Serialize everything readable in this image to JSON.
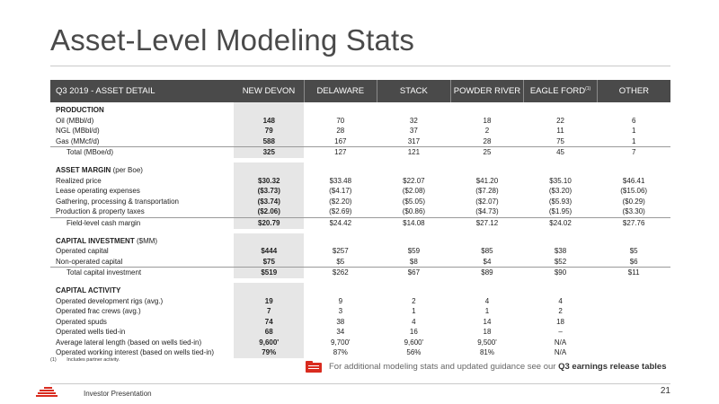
{
  "title": "Asset-Level Modeling Stats",
  "table": {
    "headers": [
      "Q3 2019 - ASSET DETAIL",
      "NEW DEVON",
      "DELAWARE",
      "STACK",
      "POWDER RIVER",
      "EAGLE FORD",
      "OTHER"
    ],
    "eagle_ford_sup": "(1)",
    "production": {
      "heading": "PRODUCTION",
      "rows": [
        {
          "label": "Oil (MBbl/d)",
          "values": [
            "148",
            "70",
            "32",
            "18",
            "22",
            "6"
          ]
        },
        {
          "label": "NGL (MBbl/d)",
          "values": [
            "79",
            "28",
            "37",
            "2",
            "11",
            "1"
          ]
        },
        {
          "label": "Gas (MMcf/d)",
          "values": [
            "588",
            "167",
            "317",
            "28",
            "75",
            "1"
          ]
        }
      ],
      "total": {
        "label": "Total (MBoe/d)",
        "values": [
          "325",
          "127",
          "121",
          "25",
          "45",
          "7"
        ]
      }
    },
    "asset_margin": {
      "heading": "ASSET MARGIN",
      "heading_sub": "(per Boe)",
      "rows": [
        {
          "label": "Realized price",
          "values": [
            "$30.32",
            "$33.48",
            "$22.07",
            "$41.20",
            "$35.10",
            "$46.41"
          ]
        },
        {
          "label": "Lease operating expenses",
          "values": [
            "($3.73)",
            "($4.17)",
            "($2.08)",
            "($7.28)",
            "($3.20)",
            "($15.06)"
          ]
        },
        {
          "label": "Gathering, processing & transportation",
          "values": [
            "($3.74)",
            "($2.20)",
            "($5.05)",
            "($2.07)",
            "($5.93)",
            "($0.29)"
          ]
        },
        {
          "label": "Production & property taxes",
          "values": [
            "($2.06)",
            "($2.69)",
            "($0.86)",
            "($4.73)",
            "($1.95)",
            "($3.30)"
          ]
        }
      ],
      "total": {
        "label": "Field-level cash margin",
        "values": [
          "$20.79",
          "$24.42",
          "$14.08",
          "$27.12",
          "$24.02",
          "$27.76"
        ]
      }
    },
    "capital_investment": {
      "heading": "CAPITAL INVESTMENT",
      "heading_sub": "($MM)",
      "rows": [
        {
          "label": "Operated capital",
          "values": [
            "$444",
            "$257",
            "$59",
            "$85",
            "$38",
            "$5"
          ]
        },
        {
          "label": "Non-operated capital",
          "values": [
            "$75",
            "$5",
            "$8",
            "$4",
            "$52",
            "$6"
          ]
        }
      ],
      "total": {
        "label": "Total capital investment",
        "values": [
          "$519",
          "$262",
          "$67",
          "$89",
          "$90",
          "$11"
        ]
      }
    },
    "capital_activity": {
      "heading": "CAPITAL ACTIVITY",
      "rows": [
        {
          "label": "Operated development rigs (avg.)",
          "values": [
            "19",
            "9",
            "2",
            "4",
            "4",
            ""
          ]
        },
        {
          "label": "Operated frac crews (avg.)",
          "values": [
            "7",
            "3",
            "1",
            "1",
            "2",
            ""
          ]
        },
        {
          "label": "Operated spuds",
          "values": [
            "74",
            "38",
            "4",
            "14",
            "18",
            ""
          ]
        },
        {
          "label": "Operated wells tied-in",
          "values": [
            "68",
            "34",
            "16",
            "18",
            "–",
            ""
          ]
        },
        {
          "label": "Average lateral length (based on wells tied-in)",
          "values": [
            "9,600'",
            "9,700'",
            "9,600'",
            "9,500'",
            "N/A",
            ""
          ]
        },
        {
          "label": "Operated working interest (based on wells tied-in)",
          "values": [
            "79%",
            "87%",
            "56%",
            "81%",
            "N/A",
            ""
          ]
        }
      ]
    }
  },
  "footnote": {
    "mark": "(1)",
    "text": "Includes partner activity."
  },
  "callout": {
    "text": "For additional modeling stats and updated guidance see our ",
    "bold": "Q3 earnings release tables"
  },
  "footer": {
    "label": "Investor Presentation",
    "page": "21"
  },
  "colors": {
    "accent": "#d92b1f",
    "header_bg": "#4a4a4a",
    "highlight_col": "#e6e6e6"
  },
  "icons": {
    "callout": "folder-icon",
    "logo": "devon-logo-icon"
  }
}
